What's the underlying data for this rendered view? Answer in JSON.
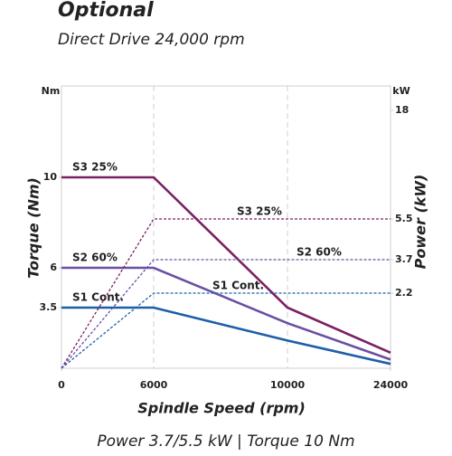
{
  "chart_data": {
    "type": "line",
    "title": "Optional",
    "subtitle": "Direct Drive 24,000 rpm",
    "caption": "Power 3.7/5.5 kW | Torque 10 Nm",
    "x_label": "Spindle Speed (rpm)",
    "y_label": "Torque (Nm)",
    "y2_label": "Power (kW)",
    "y_unit": "Nm",
    "y2_unit": "kW",
    "x": [
      0,
      6000,
      10000,
      24000
    ],
    "xlim": [
      0,
      24000
    ],
    "xticks": [
      0,
      6000,
      10000,
      24000
    ],
    "yticks": [
      3.5,
      6,
      10
    ],
    "y2ticks": [
      2.2,
      3.7,
      5.5,
      18
    ],
    "grid": true,
    "series": [
      {
        "name": "S3 25%",
        "color": "#7b1f63",
        "values": [
          10,
          10,
          3.5,
          0.9
        ]
      },
      {
        "name": "S2 60%",
        "color": "#6a4fa3",
        "values": [
          6,
          6,
          2.6,
          0.5
        ]
      },
      {
        "name": "S1 Cont.",
        "color": "#1c5fa8",
        "values": [
          3.5,
          3.5,
          1.6,
          0.25
        ]
      },
      {
        "name": "S3 25%",
        "color": "#7b1f63",
        "axis": "y2",
        "values": [
          0,
          5.5,
          5.5,
          5.5
        ]
      },
      {
        "name": "S2 60%",
        "color": "#6a4fa3",
        "axis": "y2",
        "values": [
          0,
          3.7,
          3.7,
          3.7
        ]
      },
      {
        "name": "S1 Cont.",
        "color": "#1c5fa8",
        "axis": "y2",
        "values": [
          0,
          2.2,
          2.2,
          2.2
        ]
      }
    ]
  }
}
